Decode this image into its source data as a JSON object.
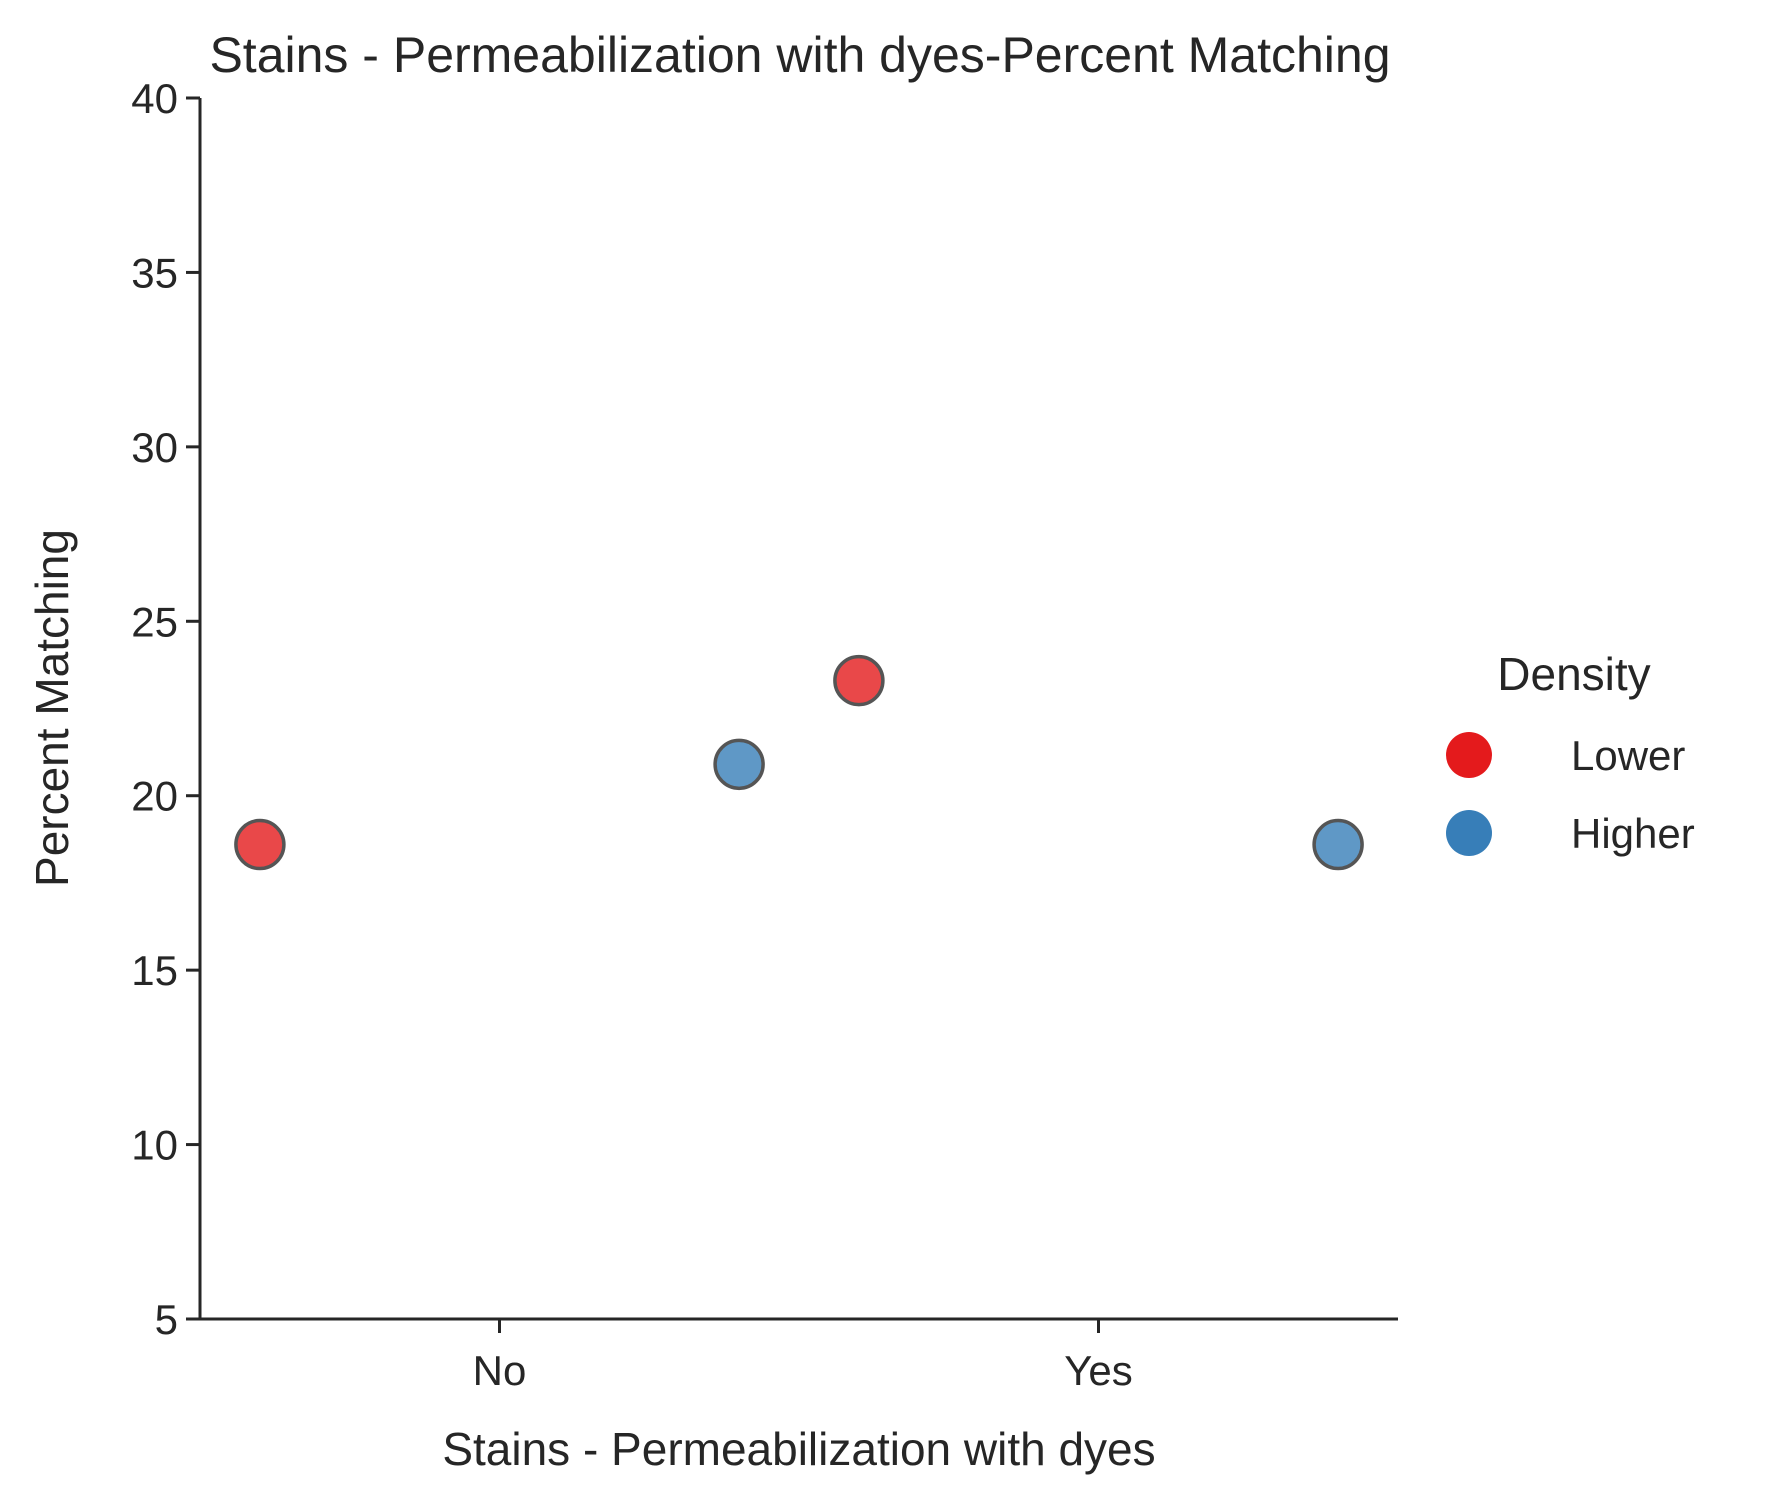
{
  "chart_data": {
    "type": "scatter",
    "title": "Stains - Permeabilization with dyes-Percent Matching",
    "xlabel": "Stains - Permeabilization with dyes",
    "ylabel": "Percent Matching",
    "categories": [
      "No",
      "Yes"
    ],
    "ylim": [
      5,
      40
    ],
    "yticks": [
      5,
      10,
      15,
      20,
      25,
      30,
      35,
      40
    ],
    "grid": false,
    "legend": {
      "title": "Density",
      "placement": "right"
    },
    "series": [
      {
        "name": "Lower",
        "color": "#e41a1c",
        "points": [
          {
            "x": "No",
            "y": 18.6
          },
          {
            "x": "Yes",
            "y": 23.3
          }
        ]
      },
      {
        "name": "Higher",
        "color": "#377eb8",
        "points": [
          {
            "x": "No",
            "y": 20.9
          },
          {
            "x": "Yes",
            "y": 18.6
          }
        ]
      }
    ]
  }
}
